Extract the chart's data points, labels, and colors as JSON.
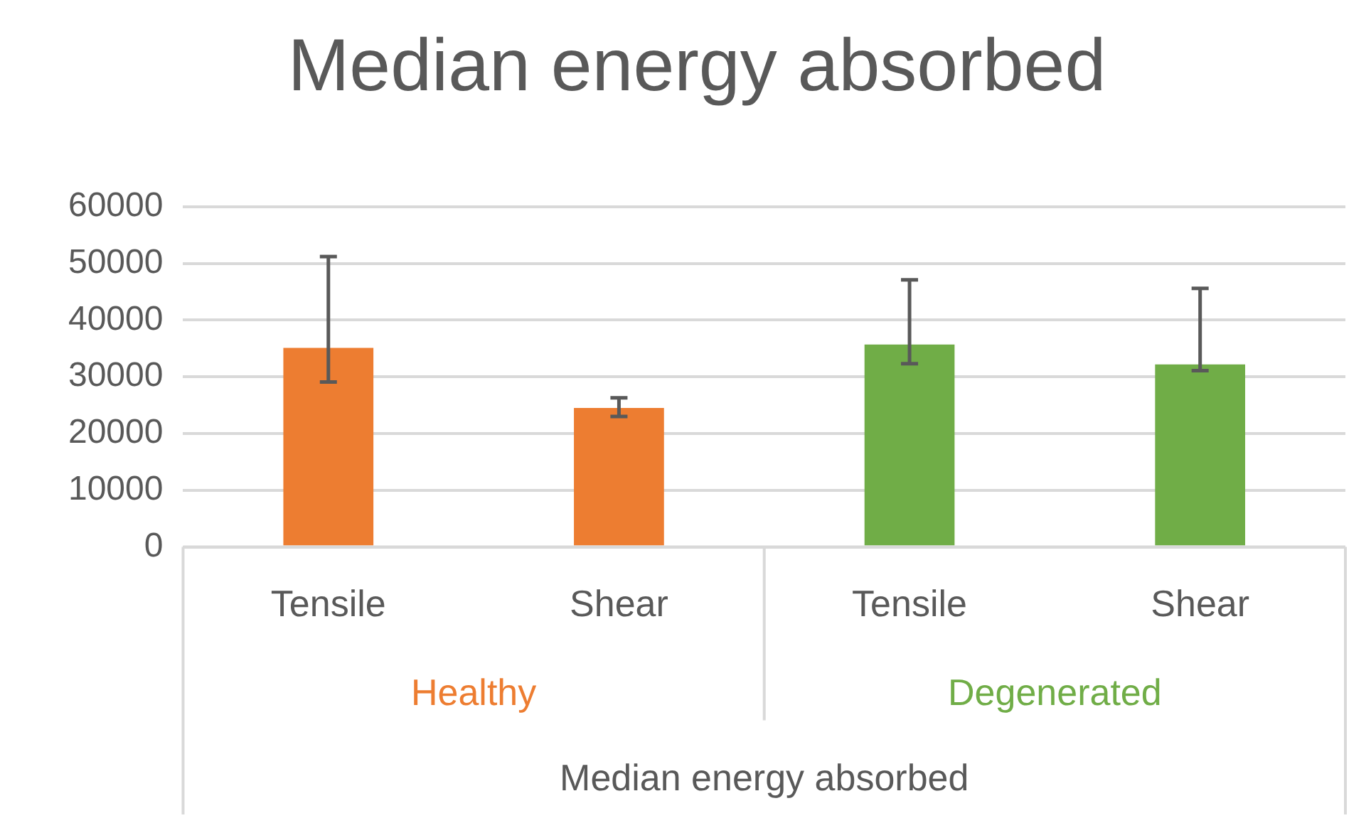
{
  "chart_data": {
    "type": "bar",
    "title": "Median energy absorbed",
    "xlabel": "Median energy absorbed",
    "categories": [
      "Tensile",
      "Shear",
      "Tensile",
      "Shear"
    ],
    "series": [
      {
        "name": "Healthy",
        "color": "#ed7d31",
        "values": [
          35100,
          24500,
          null,
          null
        ],
        "errors": [
          [
            29100,
            51200
          ],
          [
            23000,
            26300
          ],
          null,
          null
        ]
      },
      {
        "name": "Degenerated",
        "color": "#70ad47",
        "values": [
          null,
          null,
          35700,
          32200
        ],
        "errors": [
          null,
          null,
          [
            32300,
            47100
          ],
          [
            31100,
            45600
          ]
        ]
      }
    ],
    "ylim": [
      0,
      60000
    ],
    "yticks": [
      0,
      10000,
      20000,
      30000,
      40000,
      50000,
      60000
    ],
    "grid": "y",
    "legend": false
  }
}
